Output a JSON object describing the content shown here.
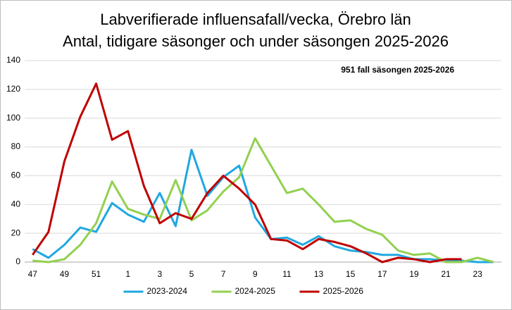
{
  "chart_data": {
    "type": "line",
    "title": "Labverifierade influensafall/vecka, Örebro län",
    "subtitle": "Antal, tidigare säsonger och under säsongen 2025-2026",
    "annotation": "951 fall säsongen 2025-2026",
    "categories": [
      "47",
      null,
      "49",
      null,
      "51",
      null,
      "1",
      null,
      "3",
      null,
      "5",
      null,
      "7",
      null,
      "9",
      null,
      "11",
      null,
      "13",
      null,
      "15",
      null,
      "17",
      null,
      "19",
      null,
      "21",
      null,
      "23",
      null
    ],
    "series": [
      {
        "name": "2023-2024",
        "color": "#1fa8e0",
        "values": [
          9,
          3,
          12,
          24,
          21,
          41,
          33,
          28,
          48,
          25,
          78,
          46,
          59,
          67,
          31,
          16,
          17,
          12,
          18,
          11,
          8,
          7,
          5,
          5,
          2,
          2,
          1,
          1,
          0,
          0
        ]
      },
      {
        "name": "2024-2025",
        "color": "#92d050",
        "values": [
          1,
          0,
          2,
          12,
          27,
          56,
          37,
          33,
          30,
          57,
          29,
          36,
          49,
          59,
          86,
          67,
          48,
          51,
          40,
          28,
          29,
          23,
          19,
          8,
          5,
          6,
          0,
          0,
          3,
          0
        ]
      },
      {
        "name": "2025-2026",
        "color": "#c00000",
        "values": [
          5,
          21,
          70,
          101,
          124,
          85,
          91,
          53,
          27,
          34,
          30,
          48,
          60,
          51,
          40,
          16,
          15,
          9,
          16,
          14,
          11,
          6,
          0,
          3,
          2,
          0,
          2,
          2,
          null,
          null
        ]
      }
    ],
    "ylim": [
      0,
      140
    ],
    "yticks": [
      0,
      20,
      40,
      60,
      80,
      100,
      120,
      140
    ],
    "grid": true,
    "legend": "bottom"
  }
}
